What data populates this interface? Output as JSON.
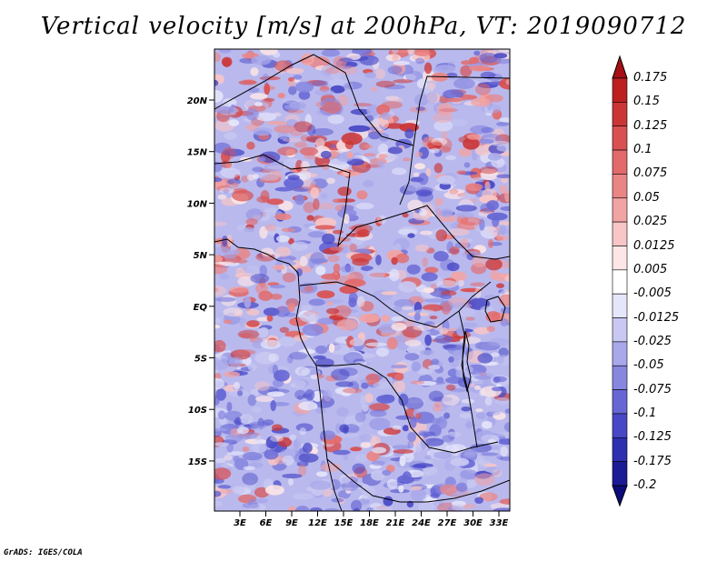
{
  "title": "Vertical velocity [m/s] at 200hPa, VT: 2019090712",
  "credit": "GrADS: IGES/COLA",
  "latitude_labels": [
    "20N",
    "15N",
    "10N",
    "5N",
    "EQ",
    "5S",
    "10S",
    "15S"
  ],
  "longitude_labels": [
    "3E",
    "6E",
    "9E",
    "12E",
    "15E",
    "18E",
    "21E",
    "24E",
    "27E",
    "30E",
    "33E"
  ],
  "colorbar": {
    "labels": [
      "0.175",
      "0.15",
      "0.125",
      "0.1",
      "0.075",
      "0.05",
      "0.025",
      "0.0125",
      "0.005",
      "-0.005",
      "-0.0125",
      "-0.025",
      "-0.05",
      "-0.075",
      "-0.1",
      "-0.125",
      "-0.175",
      "-0.2"
    ],
    "colors": [
      "#a50f15",
      "#bd1f1f",
      "#cc3535",
      "#d95050",
      "#e26a6a",
      "#ea8585",
      "#f2a3a3",
      "#f8c6c6",
      "#fde6e6",
      "#ffffff",
      "#e6e6fb",
      "#c8c8f2",
      "#a8a8ea",
      "#8787e0",
      "#6666d5",
      "#4848c6",
      "#2e2eb0",
      "#1b1b96",
      "#0c0c7a"
    ]
  }
}
